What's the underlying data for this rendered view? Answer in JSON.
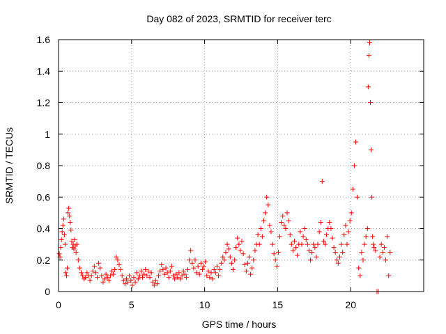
{
  "chart_data": {
    "type": "scatter",
    "title": "Day 082 of 2023, SRMTID for receiver terc",
    "xlabel": "GPS time / hours",
    "ylabel": "SRMTID / TECUs",
    "xlim": [
      0,
      25
    ],
    "ylim": [
      0,
      1.6
    ],
    "x_ticks": [
      0,
      5,
      10,
      15,
      20
    ],
    "x_tick_labels": [
      "0",
      "5",
      "10",
      "15",
      "20"
    ],
    "y_ticks": [
      0,
      0.2,
      0.4,
      0.6,
      0.8,
      1.0,
      1.2,
      1.4,
      1.6
    ],
    "y_tick_labels": [
      "0",
      "0.2",
      "0.4",
      "0.6",
      "0.8",
      "1",
      "1.2",
      "1.4",
      "1.6"
    ],
    "grid": true,
    "marker": "+",
    "marker_color": "#ff0000",
    "series": [
      {
        "name": "SRMTID",
        "points": [
          [
            0.05,
            0.24
          ],
          [
            0.1,
            0.22
          ],
          [
            0.15,
            0.28
          ],
          [
            0.2,
            0.33
          ],
          [
            0.25,
            0.38
          ],
          [
            0.3,
            0.42
          ],
          [
            0.35,
            0.46
          ],
          [
            0.4,
            0.36
          ],
          [
            0.45,
            0.3
          ],
          [
            0.5,
            0.12
          ],
          [
            0.55,
            0.1
          ],
          [
            0.6,
            0.15
          ],
          [
            0.65,
            0.5
          ],
          [
            0.7,
            0.53
          ],
          [
            0.75,
            0.48
          ],
          [
            0.8,
            0.44
          ],
          [
            0.85,
            0.39
          ],
          [
            0.9,
            0.32
          ],
          [
            0.95,
            0.28
          ],
          [
            1.0,
            0.3
          ],
          [
            1.05,
            0.27
          ],
          [
            1.1,
            0.33
          ],
          [
            1.15,
            0.29
          ],
          [
            1.2,
            0.25
          ],
          [
            1.25,
            0.3
          ],
          [
            1.35,
            0.2
          ],
          [
            1.45,
            0.15
          ],
          [
            1.55,
            0.12
          ],
          [
            1.65,
            0.1
          ],
          [
            1.75,
            0.08
          ],
          [
            1.85,
            0.09
          ],
          [
            1.95,
            0.12
          ],
          [
            2.05,
            0.1
          ],
          [
            2.15,
            0.07
          ],
          [
            2.25,
            0.1
          ],
          [
            2.35,
            0.13
          ],
          [
            2.45,
            0.16
          ],
          [
            2.55,
            0.12
          ],
          [
            2.65,
            0.09
          ],
          [
            2.75,
            0.18
          ],
          [
            2.85,
            0.15
          ],
          [
            2.95,
            0.1
          ],
          [
            3.05,
            0.06
          ],
          [
            3.15,
            0.08
          ],
          [
            3.25,
            0.11
          ],
          [
            3.35,
            0.09
          ],
          [
            3.45,
            0.07
          ],
          [
            3.55,
            0.1
          ],
          [
            3.65,
            0.13
          ],
          [
            3.75,
            0.11
          ],
          [
            3.85,
            0.14
          ],
          [
            3.95,
            0.22
          ],
          [
            4.05,
            0.2
          ],
          [
            4.15,
            0.17
          ],
          [
            4.25,
            0.14
          ],
          [
            4.35,
            0.1
          ],
          [
            4.45,
            0.07
          ],
          [
            4.55,
            0.05
          ],
          [
            4.65,
            0.08
          ],
          [
            4.75,
            0.06
          ],
          [
            4.85,
            0.1
          ],
          [
            4.95,
            0.07
          ],
          [
            5.05,
            0.04
          ],
          [
            5.15,
            0.09
          ],
          [
            5.25,
            0.06
          ],
          [
            5.35,
            0.12
          ],
          [
            5.45,
            0.08
          ],
          [
            5.55,
            0.1
          ],
          [
            5.65,
            0.13
          ],
          [
            5.75,
            0.09
          ],
          [
            5.85,
            0.11
          ],
          [
            5.95,
            0.14
          ],
          [
            6.05,
            0.1
          ],
          [
            6.15,
            0.13
          ],
          [
            6.25,
            0.09
          ],
          [
            6.35,
            0.12
          ],
          [
            6.45,
            0.06
          ],
          [
            6.55,
            0.04
          ],
          [
            6.65,
            0.07
          ],
          [
            6.75,
            0.05
          ],
          [
            6.85,
            0.1
          ],
          [
            6.95,
            0.13
          ],
          [
            7.05,
            0.17
          ],
          [
            7.15,
            0.14
          ],
          [
            7.25,
            0.11
          ],
          [
            7.35,
            0.15
          ],
          [
            7.45,
            0.12
          ],
          [
            7.55,
            0.09
          ],
          [
            7.65,
            0.13
          ],
          [
            7.75,
            0.16
          ],
          [
            7.85,
            0.1
          ],
          [
            7.95,
            0.08
          ],
          [
            8.05,
            0.11
          ],
          [
            8.15,
            0.09
          ],
          [
            8.25,
            0.12
          ],
          [
            8.35,
            0.08
          ],
          [
            8.45,
            0.1
          ],
          [
            8.55,
            0.13
          ],
          [
            8.65,
            0.11
          ],
          [
            8.75,
            0.09
          ],
          [
            8.85,
            0.14
          ],
          [
            8.95,
            0.2
          ],
          [
            9.05,
            0.26
          ],
          [
            9.15,
            0.18
          ],
          [
            9.25,
            0.15
          ],
          [
            9.35,
            0.2
          ],
          [
            9.45,
            0.12
          ],
          [
            9.55,
            0.16
          ],
          [
            9.65,
            0.11
          ],
          [
            9.75,
            0.18
          ],
          [
            9.85,
            0.14
          ],
          [
            9.95,
            0.16
          ],
          [
            10.05,
            0.19
          ],
          [
            10.15,
            0.1
          ],
          [
            10.25,
            0.13
          ],
          [
            10.35,
            0.09
          ],
          [
            10.45,
            0.12
          ],
          [
            10.55,
            0.08
          ],
          [
            10.65,
            0.14
          ],
          [
            10.75,
            0.12
          ],
          [
            10.85,
            0.16
          ],
          [
            10.95,
            0.1
          ],
          [
            11.05,
            0.14
          ],
          [
            11.15,
            0.18
          ],
          [
            11.25,
            0.22
          ],
          [
            11.35,
            0.2
          ],
          [
            11.45,
            0.25
          ],
          [
            11.55,
            0.3
          ],
          [
            11.65,
            0.27
          ],
          [
            11.75,
            0.22
          ],
          [
            11.85,
            0.18
          ],
          [
            11.95,
            0.14
          ],
          [
            12.05,
            0.2
          ],
          [
            12.15,
            0.28
          ],
          [
            12.25,
            0.34
          ],
          [
            12.35,
            0.3
          ],
          [
            12.45,
            0.26
          ],
          [
            12.55,
            0.32
          ],
          [
            12.65,
            0.24
          ],
          [
            12.75,
            0.17
          ],
          [
            12.85,
            0.13
          ],
          [
            12.95,
            0.18
          ],
          [
            13.05,
            0.22
          ],
          [
            13.15,
            0.11
          ],
          [
            13.25,
            0.15
          ],
          [
            13.35,
            0.2
          ],
          [
            13.45,
            0.26
          ],
          [
            13.55,
            0.3
          ],
          [
            13.65,
            0.36
          ],
          [
            13.75,
            0.3
          ],
          [
            13.85,
            0.4
          ],
          [
            13.95,
            0.35
          ],
          [
            14.05,
            0.45
          ],
          [
            14.15,
            0.5
          ],
          [
            14.25,
            0.6
          ],
          [
            14.35,
            0.55
          ],
          [
            14.45,
            0.42
          ],
          [
            14.55,
            0.38
          ],
          [
            14.65,
            0.3
          ],
          [
            14.75,
            0.24
          ],
          [
            14.85,
            0.2
          ],
          [
            14.95,
            0.16
          ],
          [
            15.05,
            0.25
          ],
          [
            15.15,
            0.35
          ],
          [
            15.25,
            0.44
          ],
          [
            15.35,
            0.48
          ],
          [
            15.45,
            0.42
          ],
          [
            15.55,
            0.4
          ],
          [
            15.65,
            0.5
          ],
          [
            15.75,
            0.45
          ],
          [
            15.85,
            0.36
          ],
          [
            15.95,
            0.3
          ],
          [
            16.05,
            0.26
          ],
          [
            16.15,
            0.32
          ],
          [
            16.25,
            0.28
          ],
          [
            16.35,
            0.23
          ],
          [
            16.45,
            0.3
          ],
          [
            16.55,
            0.38
          ],
          [
            16.65,
            0.3
          ],
          [
            16.75,
            0.35
          ],
          [
            16.85,
            0.4
          ],
          [
            16.95,
            0.33
          ],
          [
            17.05,
            0.3
          ],
          [
            17.15,
            0.26
          ],
          [
            17.25,
            0.2
          ],
          [
            17.35,
            0.25
          ],
          [
            17.45,
            0.3
          ],
          [
            17.55,
            0.28
          ],
          [
            17.65,
            0.22
          ],
          [
            17.75,
            0.3
          ],
          [
            17.85,
            0.38
          ],
          [
            17.95,
            0.44
          ],
          [
            18.05,
            0.7
          ],
          [
            18.15,
            0.32
          ],
          [
            18.25,
            0.3
          ],
          [
            18.35,
            0.36
          ],
          [
            18.45,
            0.4
          ],
          [
            18.55,
            0.44
          ],
          [
            18.65,
            0.4
          ],
          [
            18.75,
            0.34
          ],
          [
            18.85,
            0.28
          ],
          [
            18.95,
            0.25
          ],
          [
            19.05,
            0.2
          ],
          [
            19.15,
            0.18
          ],
          [
            19.25,
            0.22
          ],
          [
            19.35,
            0.3
          ],
          [
            19.45,
            0.25
          ],
          [
            19.55,
            0.36
          ],
          [
            19.65,
            0.42
          ],
          [
            19.75,
            0.3
          ],
          [
            19.85,
            0.38
          ],
          [
            19.95,
            0.45
          ],
          [
            20.05,
            0.5
          ],
          [
            20.15,
            0.65
          ],
          [
            20.25,
            0.8
          ],
          [
            20.35,
            0.95
          ],
          [
            20.45,
            0.6
          ],
          [
            20.55,
            0.15
          ],
          [
            20.65,
            0.1
          ],
          [
            20.75,
            0.25
          ],
          [
            20.85,
            0.2
          ],
          [
            20.95,
            0.3
          ],
          [
            21.05,
            0.35
          ],
          [
            21.15,
            0.4
          ],
          [
            21.2,
            1.3
          ],
          [
            21.25,
            1.5
          ],
          [
            21.3,
            1.58
          ],
          [
            21.35,
            1.2
          ],
          [
            21.4,
            0.9
          ],
          [
            21.45,
            0.6
          ],
          [
            21.5,
            0.35
          ],
          [
            21.55,
            0.3
          ],
          [
            21.6,
            0.28
          ],
          [
            21.7,
            0.26
          ],
          [
            21.8,
            0.0
          ],
          [
            21.9,
            0.0
          ],
          [
            22.0,
            0.22
          ],
          [
            22.1,
            0.3
          ],
          [
            22.2,
            0.25
          ],
          [
            22.3,
            0.28
          ],
          [
            22.4,
            0.2
          ],
          [
            22.5,
            0.35
          ],
          [
            22.6,
            0.1
          ],
          [
            22.7,
            0.25
          ]
        ]
      }
    ]
  }
}
